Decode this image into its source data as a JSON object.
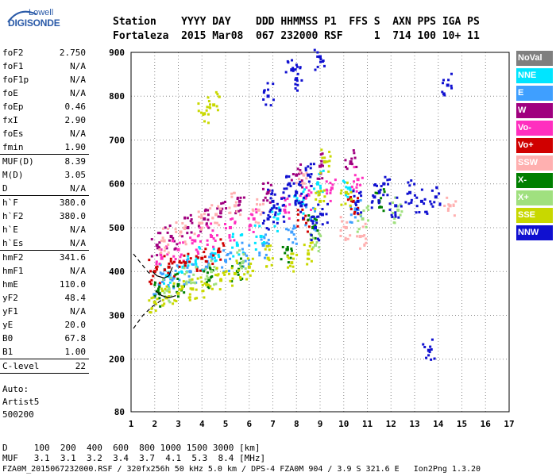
{
  "logo": {
    "line1": "Lowell",
    "line2": "DIGISONDE"
  },
  "header": {
    "col_labels": [
      "Station",
      "YYYY DAY",
      "DDD",
      "HHMMSS",
      "P1",
      "FFS",
      "S",
      "AXN",
      "PPS",
      "IGA",
      "PS"
    ],
    "row1": "Station    YYYY DAY    DDD HHMMSS P1  FFS S  AXN PPS IGA PS",
    "row2": "Fortaleza  2015 Mar08  067 232000 RSF     1  714 100 10+ 11"
  },
  "params": [
    {
      "k": "foF2",
      "v": "2.750"
    },
    {
      "k": "foF1",
      "v": "N/A"
    },
    {
      "k": "foF1p",
      "v": "N/A"
    },
    {
      "k": "foE",
      "v": "N/A"
    },
    {
      "k": "foEp",
      "v": "0.46"
    },
    {
      "k": "fxI",
      "v": "2.90"
    },
    {
      "k": "foEs",
      "v": "N/A"
    },
    {
      "k": "fmin",
      "v": "1.90"
    },
    {
      "sep": true
    },
    {
      "k": "MUF(D)",
      "v": "8.39"
    },
    {
      "k": "M(D)",
      "v": "3.05"
    },
    {
      "k": "D",
      "v": "N/A"
    },
    {
      "sep": true
    },
    {
      "k": "h`F",
      "v": "380.0"
    },
    {
      "k": "h`F2",
      "v": "380.0"
    },
    {
      "k": "h`E",
      "v": "N/A"
    },
    {
      "k": "h`Es",
      "v": "N/A"
    },
    {
      "sep": true
    },
    {
      "k": "hmF2",
      "v": "341.6"
    },
    {
      "k": "hmF1",
      "v": "N/A"
    },
    {
      "k": "hmE",
      "v": "110.0"
    },
    {
      "k": "yF2",
      "v": "48.4"
    },
    {
      "k": "yF1",
      "v": "N/A"
    },
    {
      "k": "yE",
      "v": "20.0"
    },
    {
      "k": "B0",
      "v": "67.8"
    },
    {
      "k": "B1",
      "v": "1.00"
    },
    {
      "sep": true
    },
    {
      "k": "C-level",
      "v": "22"
    },
    {
      "sep": true
    }
  ],
  "footer_left": [
    "Auto:",
    "Artist5",
    "500200"
  ],
  "legend": [
    {
      "label": "NoVal",
      "bg": "#7f7f7f",
      "fg": "#ffffff"
    },
    {
      "label": "NNE",
      "bg": "#00e5ff",
      "fg": "#ffffff"
    },
    {
      "label": "E",
      "bg": "#3f9fff",
      "fg": "#ffffff"
    },
    {
      "label": "W",
      "bg": "#a0007f",
      "fg": "#ffffff"
    },
    {
      "label": "Vo-",
      "bg": "#ff2fbf",
      "fg": "#ffffff"
    },
    {
      "label": "Vo+",
      "bg": "#d00000",
      "fg": "#ffffff"
    },
    {
      "label": "SSW",
      "bg": "#ffb0b0",
      "fg": "#ffffff"
    },
    {
      "label": "X-",
      "bg": "#007f00",
      "fg": "#ffffff"
    },
    {
      "label": "X+",
      "bg": "#a0e07f",
      "fg": "#ffffff"
    },
    {
      "label": "SSE",
      "bg": "#c8d800",
      "fg": "#ffffff"
    },
    {
      "label": "NNW",
      "bg": "#1010d0",
      "fg": "#ffffff"
    }
  ],
  "bottom": {
    "row1": "D     100  200  400  600  800 1000 1500 3000 [km]",
    "row2": "MUF   3.1  3.1  3.2  3.4  3.7  4.1  5.3  8.4 [MHz]",
    "row3": "FZA0M_2015067232000.RSF / 320fx256h 50 kHz 5.0 km / DPS-4 FZA0M 904 / 3.9 S 321.6 E   Ion2Png 1.3.20"
  },
  "chart_data": {
    "type": "scatter",
    "title": "",
    "xlabel": "",
    "ylabel": "",
    "xlim": [
      1,
      17
    ],
    "ylim": [
      80,
      900
    ],
    "x_ticks": [
      1,
      2,
      3,
      4,
      5,
      6,
      7,
      8,
      9,
      10,
      11,
      12,
      13,
      14,
      15,
      16,
      17
    ],
    "y_ticks": [
      80,
      200,
      300,
      400,
      500,
      600,
      700,
      800,
      900
    ],
    "grid": true,
    "series": [
      {
        "name": "NNE",
        "color": "#00e5ff",
        "points": [
          [
            2.5,
            390
          ],
          [
            3.2,
            410
          ],
          [
            3.8,
            430
          ],
          [
            4.5,
            440
          ],
          [
            5.5,
            460
          ],
          [
            6.5,
            480
          ],
          [
            7.2,
            520
          ],
          [
            8.1,
            560
          ],
          [
            8.9,
            600
          ],
          [
            10.2,
            590
          ]
        ]
      },
      {
        "name": "E",
        "color": "#3f9fff",
        "points": [
          [
            2.2,
            370
          ],
          [
            2.8,
            385
          ],
          [
            3.5,
            400
          ],
          [
            4.2,
            410
          ],
          [
            5.0,
            425
          ],
          [
            5.8,
            440
          ],
          [
            6.6,
            460
          ],
          [
            7.8,
            490
          ],
          [
            8.6,
            520
          ],
          [
            10.5,
            540
          ]
        ]
      },
      {
        "name": "W",
        "color": "#a0007f",
        "points": [
          [
            2.1,
            460
          ],
          [
            2.7,
            480
          ],
          [
            3.4,
            500
          ],
          [
            4.1,
            520
          ],
          [
            4.8,
            540
          ],
          [
            5.6,
            560
          ],
          [
            6.8,
            580
          ],
          [
            8.0,
            620
          ],
          [
            9.0,
            640
          ],
          [
            10.3,
            650
          ]
        ]
      },
      {
        "name": "Vo-",
        "color": "#ff2fbf",
        "points": [
          [
            2.3,
            430
          ],
          [
            3.0,
            450
          ],
          [
            3.7,
            470
          ],
          [
            4.4,
            480
          ],
          [
            5.2,
            500
          ],
          [
            6.2,
            520
          ],
          [
            7.5,
            540
          ],
          [
            8.4,
            570
          ],
          [
            9.5,
            590
          ],
          [
            10.6,
            610
          ]
        ]
      },
      {
        "name": "Vo+",
        "color": "#d00000",
        "points": [
          [
            2.0,
            400
          ],
          [
            2.6,
            410
          ],
          [
            3.3,
            420
          ],
          [
            4.0,
            430
          ],
          [
            4.7,
            445
          ],
          [
            8.3,
            520
          ],
          [
            10.4,
            560
          ]
        ]
      },
      {
        "name": "SSW",
        "color": "#ffb0b0",
        "points": [
          [
            2.4,
            470
          ],
          [
            3.1,
            490
          ],
          [
            3.9,
            510
          ],
          [
            4.6,
            530
          ],
          [
            5.4,
            550
          ],
          [
            6.4,
            540
          ],
          [
            8.2,
            600
          ],
          [
            10.1,
            500
          ],
          [
            10.7,
            480
          ],
          [
            14.5,
            550
          ]
        ]
      },
      {
        "name": "X-",
        "color": "#007f00",
        "points": [
          [
            2.2,
            350
          ],
          [
            3.0,
            370
          ],
          [
            4.3,
            380
          ],
          [
            5.5,
            400
          ],
          [
            7.6,
            450
          ],
          [
            8.7,
            500
          ],
          [
            11.5,
            560
          ]
        ]
      },
      {
        "name": "X+",
        "color": "#a0e07f",
        "points": [
          [
            2.6,
            360
          ],
          [
            3.5,
            380
          ],
          [
            4.4,
            400
          ],
          [
            5.7,
            420
          ],
          [
            8.8,
            460
          ],
          [
            10.8,
            520
          ],
          [
            12.3,
            540
          ]
        ]
      },
      {
        "name": "SSE",
        "color": "#c8d800",
        "points": [
          [
            2.0,
            330
          ],
          [
            2.5,
            340
          ],
          [
            3.0,
            350
          ],
          [
            3.6,
            360
          ],
          [
            4.2,
            370
          ],
          [
            4.8,
            380
          ],
          [
            5.4,
            395
          ],
          [
            6.0,
            410
          ],
          [
            6.8,
            430
          ],
          [
            7.8,
            420
          ],
          [
            8.5,
            440
          ],
          [
            9.0,
            560
          ],
          [
            9.2,
            650
          ],
          [
            10.1,
            580
          ],
          [
            4.1,
            760
          ],
          [
            4.5,
            780
          ]
        ]
      },
      {
        "name": "NNW",
        "color": "#1010d0",
        "points": [
          [
            6.8,
            520
          ],
          [
            7.0,
            560
          ],
          [
            7.3,
            540
          ],
          [
            7.7,
            600
          ],
          [
            8.0,
            580
          ],
          [
            8.2,
            550
          ],
          [
            8.5,
            620
          ],
          [
            8.8,
            500
          ],
          [
            9.1,
            530
          ],
          [
            10.6,
            560
          ],
          [
            11.3,
            570
          ],
          [
            11.7,
            600
          ],
          [
            12.2,
            550
          ],
          [
            12.8,
            580
          ],
          [
            13.3,
            560
          ],
          [
            13.9,
            570
          ],
          [
            7.8,
            860
          ],
          [
            8.0,
            840
          ],
          [
            6.8,
            800
          ],
          [
            14.4,
            825
          ],
          [
            13.6,
            220
          ],
          [
            9.0,
            890
          ]
        ]
      }
    ],
    "traces": [
      {
        "name": "O-trace",
        "style": "solid",
        "points": [
          [
            1.9,
            400
          ],
          [
            2.1,
            390
          ],
          [
            2.4,
            385
          ],
          [
            2.6,
            390
          ],
          [
            2.75,
            410
          ]
        ]
      },
      {
        "name": "X-trace",
        "style": "solid",
        "points": [
          [
            2.05,
            355
          ],
          [
            2.3,
            345
          ],
          [
            2.6,
            340
          ],
          [
            2.9,
            345
          ]
        ]
      },
      {
        "name": "profile",
        "style": "dashed",
        "points": [
          [
            1.1,
            440
          ],
          [
            1.4,
            420
          ],
          [
            1.7,
            400
          ],
          [
            1.9,
            390
          ]
        ]
      },
      {
        "name": "profile-x",
        "style": "dashed",
        "points": [
          [
            1.1,
            270
          ],
          [
            1.5,
            300
          ],
          [
            1.9,
            320
          ],
          [
            2.3,
            335
          ]
        ]
      }
    ]
  }
}
